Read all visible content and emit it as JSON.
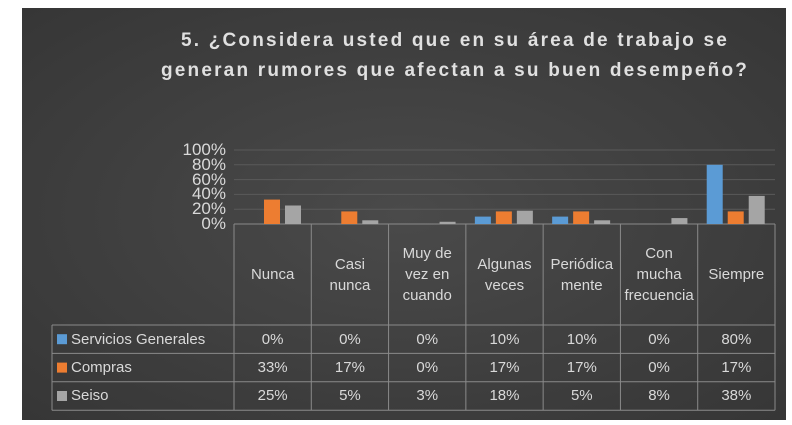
{
  "chart_data": {
    "type": "bar",
    "title": "5. ¿Considera usted que en su área de trabajo se generan rumores que afectan a su buen desempeño?",
    "categories": [
      "Nunca",
      "Casi nunca",
      "Muy de vez en cuando",
      "Algunas veces",
      "Periódicamente",
      "Con mucha frecuencia",
      "Siempre"
    ],
    "series": [
      {
        "name": "Servicios Generales",
        "color": "#5b9bd5",
        "values": [
          0,
          0,
          0,
          10,
          10,
          0,
          80
        ],
        "value_labels": [
          "0%",
          "0%",
          "0%",
          "10%",
          "10%",
          "0%",
          "80%"
        ]
      },
      {
        "name": "Compras",
        "color": "#ed7d31",
        "values": [
          33,
          17,
          0,
          17,
          17,
          0,
          17
        ],
        "value_labels": [
          "33%",
          "17%",
          "0%",
          "17%",
          "17%",
          "0%",
          "17%"
        ]
      },
      {
        "name": "Seiso",
        "color": "#a5a5a5",
        "values": [
          25,
          5,
          3,
          18,
          5,
          8,
          38
        ],
        "value_labels": [
          "25%",
          "5%",
          "3%",
          "18%",
          "5%",
          "8%",
          "38%"
        ]
      }
    ],
    "ylim": [
      0,
      100
    ],
    "yticks": [
      {
        "value": 0,
        "label": "0%"
      },
      {
        "value": 20,
        "label": "20%"
      },
      {
        "value": 40,
        "label": "40%"
      },
      {
        "value": 60,
        "label": "60%"
      },
      {
        "value": 80,
        "label": "80%"
      },
      {
        "value": 100,
        "label": "100%"
      }
    ],
    "grid": true
  }
}
